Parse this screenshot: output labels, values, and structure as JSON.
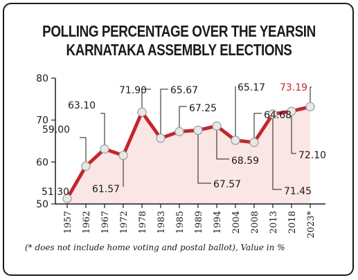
{
  "chart_data": {
    "type": "line",
    "title_line1": "POLLING PERCENTAGE OVER THE YEARSIN",
    "title_line2": "KARNATAKA ASSEMBLY ELECTIONS",
    "footnote": "(* does not include home voting and postal ballot), Value in %",
    "categories": [
      "1957",
      "1962",
      "1967",
      "1972",
      "1978",
      "1983",
      "1985",
      "1989",
      "1994",
      "2004",
      "2008",
      "2013",
      "2018",
      "2023*"
    ],
    "values": [
      51.3,
      59.0,
      63.1,
      61.57,
      71.9,
      65.67,
      67.25,
      67.57,
      68.59,
      65.17,
      64.68,
      71.45,
      72.1,
      73.19
    ],
    "data_labels": [
      "51.30",
      "59.00",
      "63.10",
      "61.57",
      "71.90",
      "65.67",
      "67.25",
      "67.57",
      "68.59",
      "65.17",
      "64.68",
      "71.45",
      "72.10",
      "73.19"
    ],
    "ylim": [
      50,
      80
    ],
    "yticks": [
      50,
      60,
      70,
      80
    ],
    "ytick_labels": [
      "50",
      "60",
      "70",
      "80"
    ],
    "highlight_index": 13,
    "line_color": "#c1272d",
    "fill_color": "#fbe6e6",
    "highlight_color": "#c1272d",
    "grid": false
  }
}
